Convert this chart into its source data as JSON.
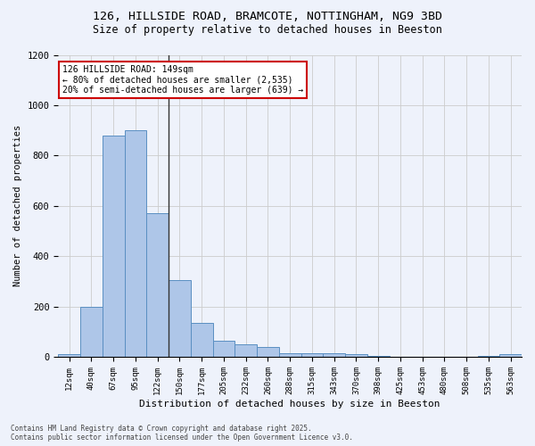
{
  "title1": "126, HILLSIDE ROAD, BRAMCOTE, NOTTINGHAM, NG9 3BD",
  "title2": "Size of property relative to detached houses in Beeston",
  "xlabel": "Distribution of detached houses by size in Beeston",
  "ylabel": "Number of detached properties",
  "categories": [
    "12sqm",
    "40sqm",
    "67sqm",
    "95sqm",
    "122sqm",
    "150sqm",
    "177sqm",
    "205sqm",
    "232sqm",
    "260sqm",
    "288sqm",
    "315sqm",
    "343sqm",
    "370sqm",
    "398sqm",
    "425sqm",
    "453sqm",
    "480sqm",
    "508sqm",
    "535sqm",
    "563sqm"
  ],
  "values": [
    10,
    200,
    880,
    900,
    570,
    305,
    135,
    65,
    50,
    40,
    15,
    15,
    15,
    10,
    5,
    1,
    1,
    1,
    1,
    5,
    10
  ],
  "bar_color": "#aec6e8",
  "bar_edge_color": "#5a8fc2",
  "subject_bar_index": 4,
  "annotation_title": "126 HILLSIDE ROAD: 149sqm",
  "annotation_line1": "← 80% of detached houses are smaller (2,535)",
  "annotation_line2": "20% of semi-detached houses are larger (639) →",
  "annotation_box_color": "#ffffff",
  "annotation_box_edge": "#cc0000",
  "subject_line_color": "#333333",
  "ylim": [
    0,
    1200
  ],
  "yticks": [
    0,
    200,
    400,
    600,
    800,
    1000,
    1200
  ],
  "grid_color": "#cccccc",
  "bg_color": "#eef2fb",
  "footer1": "Contains HM Land Registry data © Crown copyright and database right 2025.",
  "footer2": "Contains public sector information licensed under the Open Government Licence v3.0."
}
